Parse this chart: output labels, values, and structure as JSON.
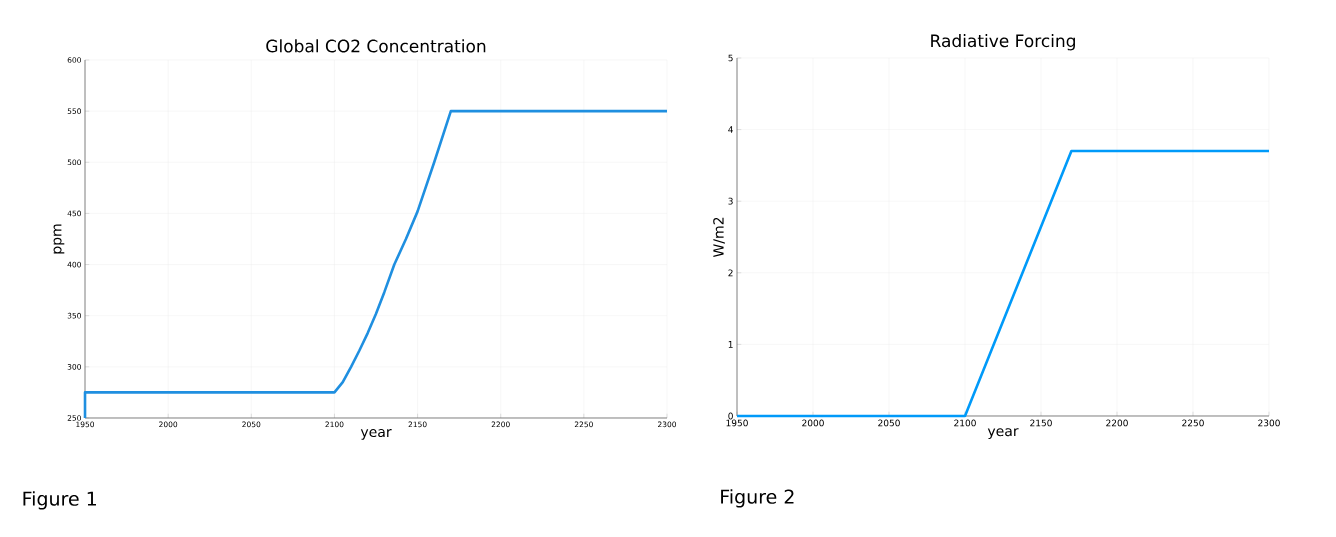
{
  "chart_data": [
    {
      "type": "line",
      "title": "Global CO2 Concentration",
      "xlabel": "year",
      "ylabel": "ppm",
      "x": [
        1950,
        1950,
        2100,
        2105,
        2110,
        2115,
        2120,
        2125,
        2130,
        2136,
        2143,
        2150,
        2160,
        2170,
        2300
      ],
      "series": [
        {
          "color": "#1f8fe0",
          "values": [
            250,
            275,
            275,
            285,
            300,
            316,
            333,
            352,
            373,
            400,
            425,
            452,
            500,
            550,
            550
          ]
        }
      ],
      "xlim": [
        1950,
        2300
      ],
      "xticks": [
        1950,
        2000,
        2050,
        2100,
        2150,
        2200,
        2250,
        2300
      ],
      "ylim": [
        250,
        600
      ],
      "yticks": [
        250,
        300,
        350,
        400,
        450,
        500,
        550,
        600
      ],
      "grid": true,
      "marker": "none",
      "line_style": "solid",
      "annotations": [
        "Figure 1"
      ]
    },
    {
      "type": "line",
      "title": "Radiative Forcing",
      "xlabel": "year",
      "ylabel": "W/m2",
      "x": [
        1950,
        2100,
        2170,
        2300
      ],
      "series": [
        {
          "color": "#009af9",
          "values": [
            0,
            0,
            3.7,
            3.7
          ]
        }
      ],
      "xlim": [
        1950,
        2300
      ],
      "xticks": [
        1950,
        2000,
        2050,
        2100,
        2150,
        2200,
        2250,
        2300
      ],
      "ylim": [
        0,
        5
      ],
      "yticks": [
        0,
        1,
        2,
        3,
        4,
        5
      ],
      "grid": true,
      "marker": "none",
      "line_style": "solid",
      "annotations": [
        "Figure 2"
      ]
    }
  ]
}
